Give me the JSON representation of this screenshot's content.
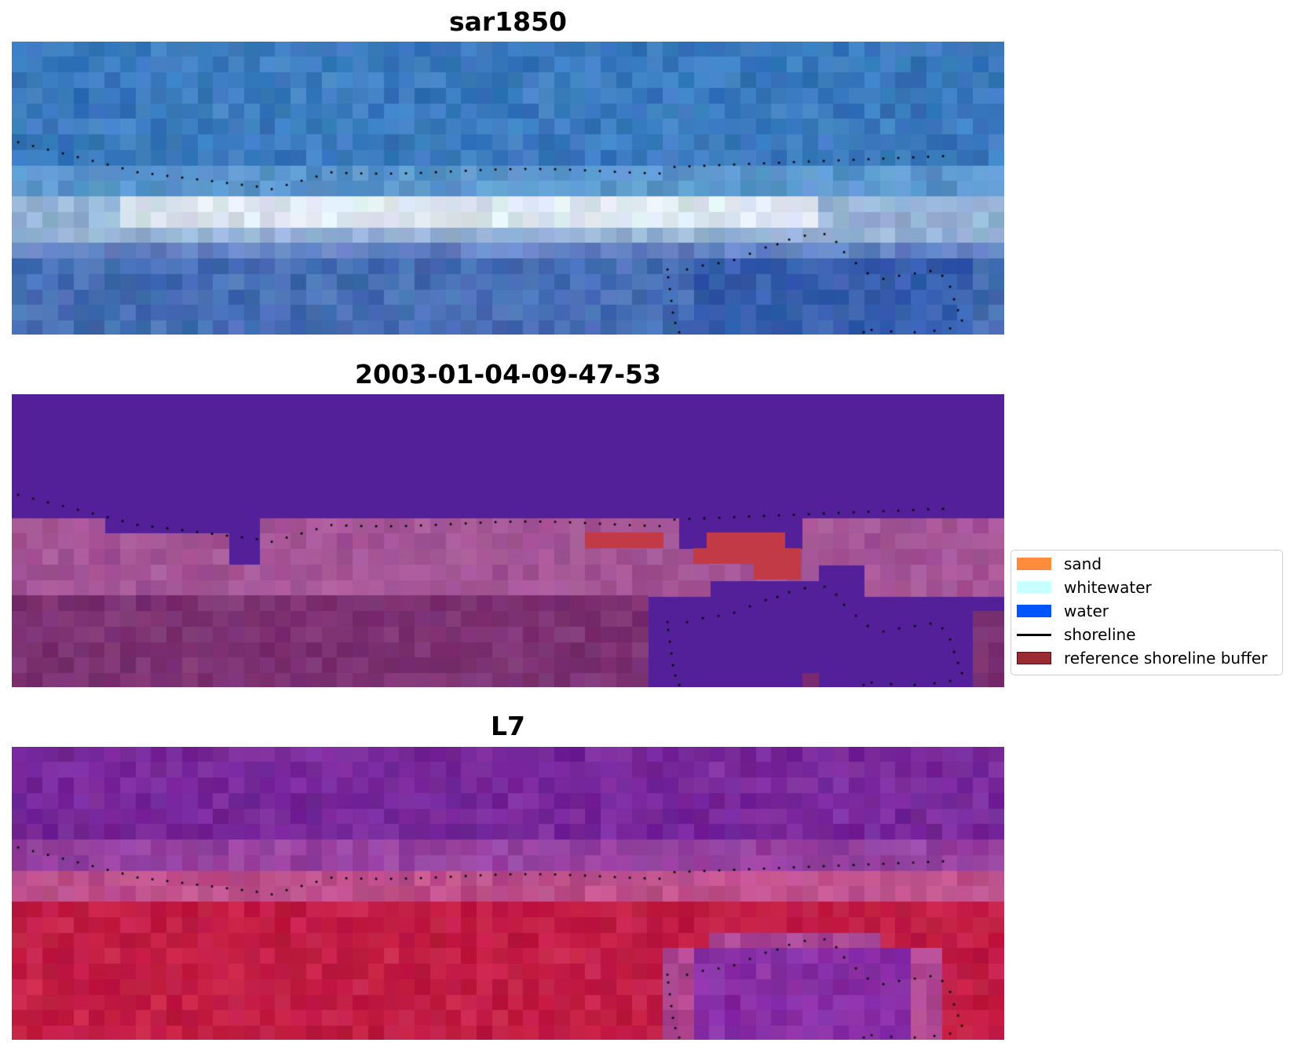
{
  "panels": [
    {
      "title": "sar1850",
      "style": "rgb-water"
    },
    {
      "title": "2003-01-04-09-47-53",
      "style": "classified"
    },
    {
      "title": "L7",
      "style": "false-color"
    }
  ],
  "legend": {
    "items": [
      {
        "label": "sand",
        "type": "patch",
        "color": "#ff8c3c"
      },
      {
        "label": "whitewater",
        "type": "patch",
        "color": "#c8ffff"
      },
      {
        "label": "water",
        "type": "patch",
        "color": "#0055ff"
      },
      {
        "label": "shoreline",
        "type": "line",
        "color": "#000000"
      },
      {
        "label": "reference shoreline buffer",
        "type": "patch",
        "color": "#9b2b33"
      }
    ]
  },
  "colors": {
    "water_class": "#53209a",
    "buffer": "#c23a46",
    "whitewater_band": "#e8f2f6",
    "l7_water": "#7a2596",
    "l7_land": "#c01e4a"
  }
}
